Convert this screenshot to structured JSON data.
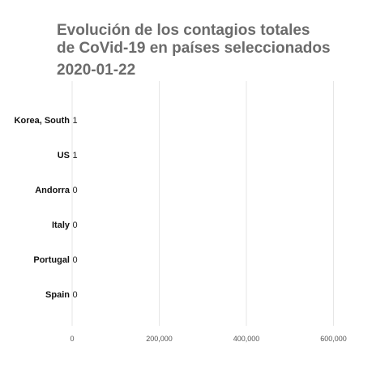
{
  "chart_data": {
    "type": "bar",
    "orientation": "horizontal",
    "title": "Evolución de los contagios totales de CoVid-19 en países seleccionados",
    "title_lines": [
      "Evolución de los contagios totales",
      "de CoVid-19 en países seleccionados"
    ],
    "subtitle": "2020-01-22",
    "categories": [
      "Korea, South",
      "US",
      "Andorra",
      "Italy",
      "Portugal",
      "Spain"
    ],
    "values": [
      1,
      1,
      0,
      0,
      0,
      0
    ],
    "value_labels": [
      "1",
      "1",
      "0",
      "0",
      "0",
      "0"
    ],
    "xlim": [
      0,
      680000
    ],
    "x_ticks": [
      0,
      200000,
      400000,
      600000
    ],
    "x_tick_labels": [
      "0",
      "200,000",
      "400,000",
      "600,000"
    ],
    "grid": true,
    "legend": "none",
    "bar_color": "#888888"
  }
}
